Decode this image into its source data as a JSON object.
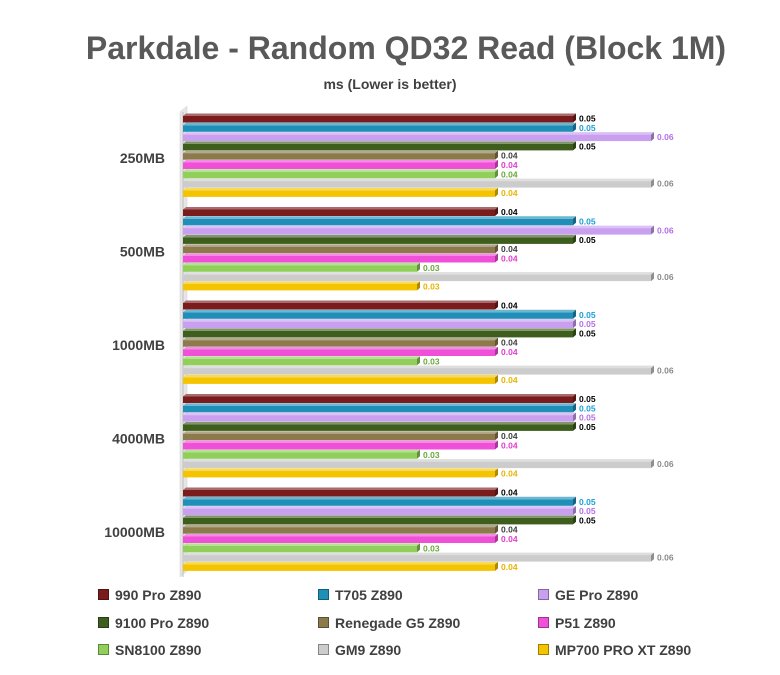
{
  "chart_data": {
    "type": "bar",
    "orientation": "horizontal",
    "title": "Parkdale - Random QD32 Read (Block 1M)",
    "subtitle": "ms (Lower is better)",
    "categories": [
      "250MB",
      "500MB",
      "1000MB",
      "4000MB",
      "10000MB"
    ],
    "xlim": [
      0,
      0.06
    ],
    "grid": false,
    "legend_position": "bottom",
    "series": [
      {
        "name": "990 Pro Z890",
        "color": "#7b1c1c",
        "label_color": "#000000",
        "values": [
          0.05,
          0.04,
          0.04,
          0.05,
          0.04
        ]
      },
      {
        "name": "T705 Z890",
        "color": "#1f8fb8",
        "label_color": "#1aa0d8",
        "values": [
          0.05,
          0.05,
          0.05,
          0.05,
          0.05
        ]
      },
      {
        "name": "GE Pro Z890",
        "color": "#c9a0f0",
        "label_color": "#b56ee8",
        "values": [
          0.06,
          0.06,
          0.05,
          0.05,
          0.05
        ]
      },
      {
        "name": "9100 Pro Z890",
        "color": "#3e5e1e",
        "label_color": "#000000",
        "values": [
          0.05,
          0.05,
          0.05,
          0.05,
          0.05
        ]
      },
      {
        "name": "Renegade G5 Z890",
        "color": "#8c7a4c",
        "label_color": "#404040",
        "values": [
          0.04,
          0.04,
          0.04,
          0.04,
          0.04
        ]
      },
      {
        "name": "P51 Z890",
        "color": "#f04fd8",
        "label_color": "#e33ccf",
        "values": [
          0.04,
          0.04,
          0.04,
          0.04,
          0.04
        ]
      },
      {
        "name": "SN8100 Z890",
        "color": "#8fcf5a",
        "label_color": "#6aa83a",
        "values": [
          0.04,
          0.03,
          0.03,
          0.03,
          0.03
        ]
      },
      {
        "name": "GM9 Z890",
        "color": "#cccccc",
        "label_color": "#8a8a8a",
        "values": [
          0.06,
          0.06,
          0.06,
          0.06,
          0.06
        ]
      },
      {
        "name": "MP700 PRO XT Z890",
        "color": "#f5c400",
        "label_color": "#e8b400",
        "values": [
          0.04,
          0.03,
          0.04,
          0.04,
          0.04
        ]
      }
    ]
  }
}
